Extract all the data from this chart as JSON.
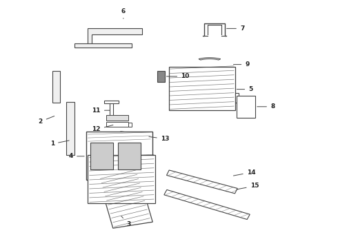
{
  "bg_color": "#ffffff",
  "line_color": "#444444",
  "text_color": "#222222",
  "fig_width": 4.9,
  "fig_height": 3.6,
  "dpi": 100,
  "label_positions": {
    "1": [
      0.215,
      0.435,
      0.255,
      0.435
    ],
    "2": [
      0.175,
      0.535,
      0.215,
      0.575
    ],
    "3": [
      0.415,
      0.115,
      0.415,
      0.085
    ],
    "4": [
      0.285,
      0.38,
      0.245,
      0.38
    ],
    "5": [
      0.685,
      0.56,
      0.725,
      0.56
    ],
    "6": [
      0.365,
      0.925,
      0.365,
      0.955
    ],
    "7": [
      0.68,
      0.885,
      0.715,
      0.885
    ],
    "8": [
      0.745,
      0.55,
      0.785,
      0.55
    ],
    "9": [
      0.755,
      0.74,
      0.795,
      0.74
    ],
    "10": [
      0.595,
      0.69,
      0.635,
      0.69
    ],
    "11": [
      0.365,
      0.575,
      0.325,
      0.555
    ],
    "12": [
      0.365,
      0.515,
      0.325,
      0.495
    ],
    "13": [
      0.48,
      0.455,
      0.515,
      0.44
    ],
    "14": [
      0.685,
      0.29,
      0.725,
      0.29
    ],
    "15": [
      0.69,
      0.24,
      0.73,
      0.24
    ]
  }
}
